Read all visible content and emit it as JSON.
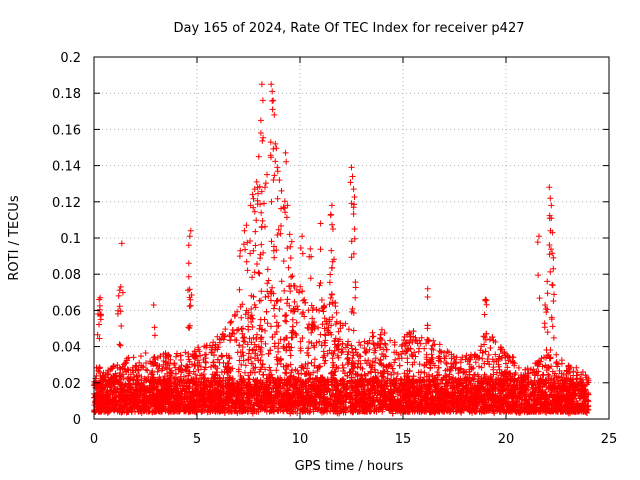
{
  "chart_data": {
    "type": "scatter",
    "title": "Day 165 of 2024, Rate Of TEC Index for receiver p427",
    "xlabel": "GPS time / hours",
    "ylabel": "ROTI / TECUs",
    "xlim": [
      0,
      25
    ],
    "ylim": [
      0,
      0.2
    ],
    "xticks": [
      0,
      5,
      10,
      15,
      20,
      25
    ],
    "xtick_labels": [
      "0",
      "5",
      "10",
      "15",
      "20",
      "25"
    ],
    "yticks": [
      0,
      0.02,
      0.04,
      0.06,
      0.08,
      0.1,
      0.12,
      0.14,
      0.16,
      0.18,
      0.2
    ],
    "ytick_labels": [
      "0",
      "0.02",
      "0.04",
      "0.06",
      "0.08",
      "0.1",
      "0.12",
      "0.14",
      "0.16",
      "0.18",
      "0.2"
    ],
    "grid": true,
    "marker": "plus",
    "color": "#ff0000",
    "series": [
      {
        "name": "ROTI",
        "envelope_x": [
          0,
          0.5,
          1,
          1.5,
          2,
          2.5,
          3,
          3.5,
          4,
          4.5,
          5,
          5.5,
          6,
          6.5,
          7,
          7.5,
          8,
          8.5,
          9,
          9.5,
          10,
          10.5,
          11,
          11.5,
          12,
          12.5,
          13,
          13.5,
          14,
          14.5,
          15,
          15.5,
          16,
          16.5,
          17,
          17.5,
          18,
          18.5,
          19,
          19.5,
          20,
          20.5,
          21,
          21.5,
          22,
          22.5,
          23,
          23.5,
          24
        ],
        "envelope_y": [
          0.03,
          0.028,
          0.03,
          0.033,
          0.036,
          0.038,
          0.034,
          0.037,
          0.036,
          0.04,
          0.04,
          0.042,
          0.046,
          0.052,
          0.062,
          0.07,
          0.072,
          0.078,
          0.068,
          0.075,
          0.076,
          0.07,
          0.066,
          0.07,
          0.058,
          0.05,
          0.046,
          0.048,
          0.05,
          0.046,
          0.046,
          0.05,
          0.045,
          0.044,
          0.04,
          0.036,
          0.035,
          0.038,
          0.048,
          0.044,
          0.036,
          0.034,
          0.03,
          0.032,
          0.04,
          0.035,
          0.03,
          0.028,
          0.025
        ],
        "spikes": [
          {
            "x": 0.2,
            "y": 0.058
          },
          {
            "x": 0.25,
            "y": 0.066
          },
          {
            "x": 0.3,
            "y": 0.067
          },
          {
            "x": 1.2,
            "y": 0.068
          },
          {
            "x": 1.3,
            "y": 0.073
          },
          {
            "x": 1.35,
            "y": 0.097
          },
          {
            "x": 2.9,
            "y": 0.063
          },
          {
            "x": 4.6,
            "y": 0.086
          },
          {
            "x": 4.6,
            "y": 0.096
          },
          {
            "x": 4.65,
            "y": 0.101
          },
          {
            "x": 4.7,
            "y": 0.104
          },
          {
            "x": 7.1,
            "y": 0.093
          },
          {
            "x": 7.3,
            "y": 0.104
          },
          {
            "x": 7.4,
            "y": 0.107
          },
          {
            "x": 7.6,
            "y": 0.118
          },
          {
            "x": 7.7,
            "y": 0.124
          },
          {
            "x": 7.8,
            "y": 0.127
          },
          {
            "x": 7.9,
            "y": 0.131
          },
          {
            "x": 8.0,
            "y": 0.145
          },
          {
            "x": 8.1,
            "y": 0.158
          },
          {
            "x": 8.1,
            "y": 0.165
          },
          {
            "x": 8.15,
            "y": 0.185
          },
          {
            "x": 8.2,
            "y": 0.176
          },
          {
            "x": 8.3,
            "y": 0.128
          },
          {
            "x": 8.4,
            "y": 0.135
          },
          {
            "x": 8.6,
            "y": 0.185
          },
          {
            "x": 8.65,
            "y": 0.181
          },
          {
            "x": 8.7,
            "y": 0.176
          },
          {
            "x": 8.75,
            "y": 0.168
          },
          {
            "x": 8.8,
            "y": 0.152
          },
          {
            "x": 8.9,
            "y": 0.139
          },
          {
            "x": 9.0,
            "y": 0.132
          },
          {
            "x": 9.1,
            "y": 0.126
          },
          {
            "x": 9.2,
            "y": 0.117
          },
          {
            "x": 9.3,
            "y": 0.147
          },
          {
            "x": 9.4,
            "y": 0.118
          },
          {
            "x": 9.5,
            "y": 0.102
          },
          {
            "x": 9.6,
            "y": 0.098
          },
          {
            "x": 10.1,
            "y": 0.101
          },
          {
            "x": 10.5,
            "y": 0.094
          },
          {
            "x": 11.0,
            "y": 0.108
          },
          {
            "x": 11.5,
            "y": 0.113
          },
          {
            "x": 11.55,
            "y": 0.118
          },
          {
            "x": 11.6,
            "y": 0.105
          },
          {
            "x": 12.5,
            "y": 0.139
          },
          {
            "x": 12.55,
            "y": 0.134
          },
          {
            "x": 12.6,
            "y": 0.127
          },
          {
            "x": 12.6,
            "y": 0.117
          },
          {
            "x": 12.65,
            "y": 0.105
          },
          {
            "x": 16.2,
            "y": 0.072
          },
          {
            "x": 19.0,
            "y": 0.066
          },
          {
            "x": 21.6,
            "y": 0.101
          },
          {
            "x": 22.1,
            "y": 0.128
          },
          {
            "x": 22.15,
            "y": 0.122
          },
          {
            "x": 22.2,
            "y": 0.118
          },
          {
            "x": 22.2,
            "y": 0.111
          },
          {
            "x": 22.25,
            "y": 0.103
          },
          {
            "x": 22.3,
            "y": 0.089
          },
          {
            "x": 22.0,
            "y": 0.076
          },
          {
            "x": 21.9,
            "y": 0.063
          }
        ]
      }
    ]
  }
}
